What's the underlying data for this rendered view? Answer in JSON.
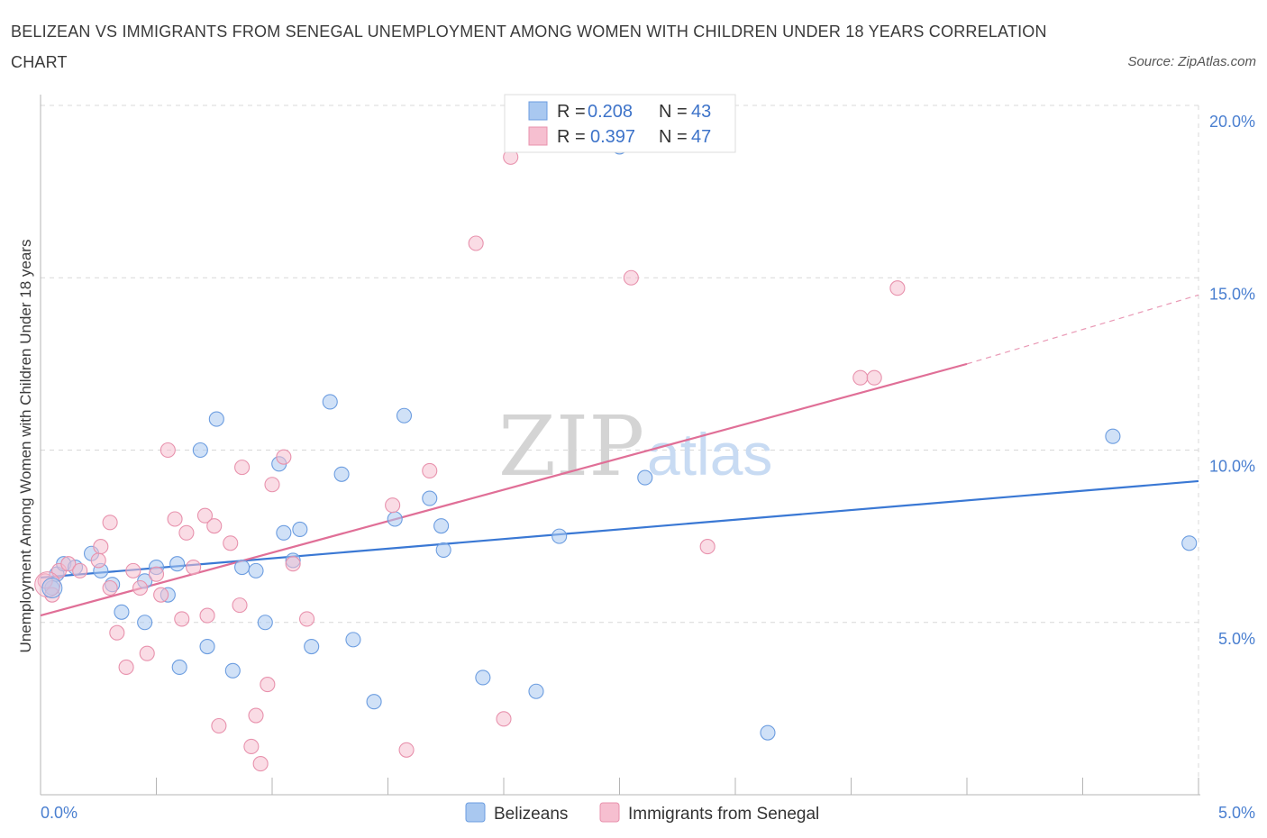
{
  "title": "BELIZEAN VS IMMIGRANTS FROM SENEGAL UNEMPLOYMENT AMONG WOMEN WITH CHILDREN UNDER 18 YEARS CORRELATION CHART",
  "source": "Source: ZipAtlas.com",
  "watermark": {
    "zip": "ZIP",
    "atlas": "atlas"
  },
  "colors": {
    "blue_fill": "#a9c8f0",
    "blue_stroke": "#6c9de0",
    "blue_line": "#3a78d4",
    "pink_fill": "#f6bfd0",
    "pink_stroke": "#e892ad",
    "pink_line": "#e06f97",
    "grid": "#d8d8d8",
    "axis_text": "#4a7fd0"
  },
  "legend": {
    "rows": [
      {
        "r_label": "R =",
        "r_value": "0.208",
        "n_label": "N =",
        "n_value": "43"
      },
      {
        "r_label": "R =",
        "r_value": "0.397",
        "n_label": "N =",
        "n_value": "47"
      }
    ]
  },
  "bottom_legend": {
    "series1": "Belizeans",
    "series2": "Immigrants from Senegal"
  },
  "chart_data": {
    "type": "scatter",
    "title": "BELIZEAN VS IMMIGRANTS FROM SENEGAL UNEMPLOYMENT AMONG WOMEN WITH CHILDREN UNDER 18 YEARS CORRELATION CHART",
    "xlabel": "",
    "ylabel": "Unemployment Among Women with Children Under 18 years",
    "xlim": [
      0,
      5
    ],
    "ylim": [
      0,
      20
    ],
    "x_tick_labels": [
      {
        "value": 0,
        "label": "0.0%"
      },
      {
        "value": 5,
        "label": "5.0%"
      }
    ],
    "y_tick_labels": [
      {
        "value": 5,
        "label": "5.0%"
      },
      {
        "value": 10,
        "label": "10.0%"
      },
      {
        "value": 15,
        "label": "15.0%"
      },
      {
        "value": 20,
        "label": "20.0%"
      }
    ],
    "grid": true,
    "series": [
      {
        "name": "Belizeans",
        "r": 0.208,
        "n": 43,
        "trend": {
          "x0": 0,
          "y0": 6.3,
          "x1": 5,
          "y1": 9.1
        },
        "points": [
          [
            0.05,
            6.0
          ],
          [
            0.07,
            6.4
          ],
          [
            0.1,
            6.7
          ],
          [
            0.15,
            6.6
          ],
          [
            0.22,
            7.0
          ],
          [
            0.26,
            6.5
          ],
          [
            0.31,
            6.1
          ],
          [
            0.35,
            5.3
          ],
          [
            0.45,
            6.2
          ],
          [
            0.45,
            5.0
          ],
          [
            0.5,
            6.6
          ],
          [
            0.55,
            5.8
          ],
          [
            0.59,
            6.7
          ],
          [
            0.6,
            3.7
          ],
          [
            0.69,
            10.0
          ],
          [
            0.72,
            4.3
          ],
          [
            0.76,
            10.9
          ],
          [
            0.83,
            3.6
          ],
          [
            0.87,
            6.6
          ],
          [
            0.93,
            6.5
          ],
          [
            0.97,
            5.0
          ],
          [
            1.03,
            9.6
          ],
          [
            1.05,
            7.6
          ],
          [
            1.09,
            6.8
          ],
          [
            1.12,
            7.7
          ],
          [
            1.17,
            4.3
          ],
          [
            1.25,
            11.4
          ],
          [
            1.3,
            9.3
          ],
          [
            1.35,
            4.5
          ],
          [
            1.44,
            2.7
          ],
          [
            1.53,
            8.0
          ],
          [
            1.57,
            11.0
          ],
          [
            1.68,
            8.6
          ],
          [
            1.73,
            7.8
          ],
          [
            1.74,
            7.1
          ],
          [
            1.91,
            3.4
          ],
          [
            2.14,
            3.0
          ],
          [
            2.24,
            7.5
          ],
          [
            2.5,
            18.8
          ],
          [
            2.61,
            9.2
          ],
          [
            3.14,
            1.8
          ],
          [
            4.63,
            10.4
          ],
          [
            4.96,
            7.3
          ]
        ]
      },
      {
        "name": "Immigrants from Senegal",
        "r": 0.397,
        "n": 47,
        "trend": {
          "x0": 0,
          "y0": 5.2,
          "x1": 4.0,
          "y1": 12.5,
          "dash_x1": 5,
          "dash_y1": 14.5
        },
        "points": [
          [
            0.02,
            6.2
          ],
          [
            0.05,
            5.8
          ],
          [
            0.08,
            6.5
          ],
          [
            0.12,
            6.7
          ],
          [
            0.17,
            6.5
          ],
          [
            0.25,
            6.8
          ],
          [
            0.26,
            7.2
          ],
          [
            0.3,
            7.9
          ],
          [
            0.3,
            6.0
          ],
          [
            0.33,
            4.7
          ],
          [
            0.37,
            3.7
          ],
          [
            0.4,
            6.5
          ],
          [
            0.43,
            6.0
          ],
          [
            0.46,
            4.1
          ],
          [
            0.5,
            6.4
          ],
          [
            0.52,
            5.8
          ],
          [
            0.55,
            10.0
          ],
          [
            0.58,
            8.0
          ],
          [
            0.61,
            5.1
          ],
          [
            0.63,
            7.6
          ],
          [
            0.66,
            6.6
          ],
          [
            0.71,
            8.1
          ],
          [
            0.72,
            5.2
          ],
          [
            0.75,
            7.8
          ],
          [
            0.77,
            2.0
          ],
          [
            0.82,
            7.3
          ],
          [
            0.86,
            5.5
          ],
          [
            0.87,
            9.5
          ],
          [
            0.91,
            1.4
          ],
          [
            0.93,
            2.3
          ],
          [
            0.95,
            0.9
          ],
          [
            0.98,
            3.2
          ],
          [
            1.0,
            9.0
          ],
          [
            1.05,
            9.8
          ],
          [
            1.09,
            6.7
          ],
          [
            1.15,
            5.1
          ],
          [
            1.52,
            8.4
          ],
          [
            1.58,
            1.3
          ],
          [
            1.68,
            9.4
          ],
          [
            1.88,
            16.0
          ],
          [
            2.0,
            2.2
          ],
          [
            2.03,
            18.5
          ],
          [
            2.55,
            15.0
          ],
          [
            2.88,
            7.2
          ],
          [
            3.54,
            12.1
          ],
          [
            3.6,
            12.1
          ],
          [
            3.7,
            14.7
          ]
        ]
      }
    ]
  }
}
